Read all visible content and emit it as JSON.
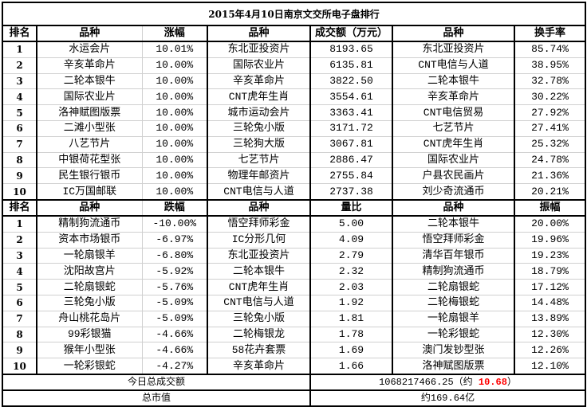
{
  "title": "2015年4月10日南京文交所电子盘排行",
  "top_section": {
    "headers": [
      "排名",
      "品种",
      "涨幅",
      "品种",
      "成交额（万元）",
      "品种",
      "换手率"
    ],
    "rows": [
      [
        "1",
        "水运会片",
        "10.01%",
        "东北亚投资片",
        "8193.65",
        "东北亚投资片",
        "85.74%"
      ],
      [
        "2",
        "辛亥革命片",
        "10.00%",
        "国际农业片",
        "6135.81",
        "CNT电信与人道",
        "38.95%"
      ],
      [
        "3",
        "二轮本银牛",
        "10.00%",
        "辛亥革命片",
        "3822.50",
        "二轮本银牛",
        "32.78%"
      ],
      [
        "4",
        "国际农业片",
        "10.00%",
        "CNT虎年生肖",
        "3554.61",
        "辛亥革命片",
        "30.22%"
      ],
      [
        "5",
        "洛神赋图版票",
        "10.00%",
        "城市运动会片",
        "3363.41",
        "CNT电信贸易",
        "27.92%"
      ],
      [
        "6",
        "二滩小型张",
        "10.00%",
        "三轮兔小版",
        "3171.72",
        "七艺节片",
        "27.41%"
      ],
      [
        "7",
        "八艺节片",
        "10.00%",
        "三轮狗大版",
        "3067.81",
        "CNT虎年生肖",
        "25.32%"
      ],
      [
        "8",
        "中银荷花型张",
        "10.00%",
        "七艺节片",
        "2886.47",
        "国际农业片",
        "24.78%"
      ],
      [
        "9",
        "民生银行银币",
        "10.00%",
        "物理年邮资片",
        "2755.84",
        "户县农民画片",
        "21.36%"
      ],
      [
        "10",
        "IC万国邮联",
        "10.00%",
        "CNT电信与人道",
        "2737.38",
        "刘少奇流通币",
        "20.21%"
      ]
    ]
  },
  "bottom_section": {
    "headers": [
      "排名",
      "品种",
      "跌幅",
      "品种",
      "量比",
      "品种",
      "振幅"
    ],
    "rows": [
      [
        "1",
        "精制狗流通币",
        "-10.00%",
        "悟空拜师彩金",
        "5.00",
        "二轮本银牛",
        "20.00%"
      ],
      [
        "2",
        "资本市场银币",
        "-6.97%",
        "IC分形几何",
        "4.09",
        "悟空拜师彩金",
        "19.96%"
      ],
      [
        "3",
        "一轮扇银羊",
        "-6.80%",
        "东北亚投资片",
        "2.79",
        "清华百年银币",
        "19.23%"
      ],
      [
        "4",
        "沈阳故宫片",
        "-5.92%",
        "二轮本银牛",
        "2.32",
        "精制狗流通币",
        "18.79%"
      ],
      [
        "5",
        "二轮扇银蛇",
        "-5.76%",
        "CNT虎年生肖",
        "2.03",
        "二轮扇银蛇",
        "17.12%"
      ],
      [
        "6",
        "三轮兔小版",
        "-5.09%",
        "CNT电信与人道",
        "1.92",
        "二轮梅银蛇",
        "14.48%"
      ],
      [
        "7",
        "舟山桃花岛片",
        "-5.09%",
        "三轮兔小版",
        "1.81",
        "一轮扇银羊",
        "13.89%"
      ],
      [
        "8",
        "99彩银猫",
        "-4.66%",
        "二轮梅银龙",
        "1.78",
        "一轮彩银蛇",
        "12.30%"
      ],
      [
        "9",
        "猴年小型张",
        "-4.66%",
        "58花卉套票",
        "1.69",
        "澳门发钞型张",
        "12.26%"
      ],
      [
        "10",
        "一轮彩银蛇",
        "-4.27%",
        "辛亥革命片",
        "1.66",
        "洛神赋图版票",
        "12.10%"
      ]
    ]
  },
  "summary": {
    "total_turnover_label": "今日总成交额",
    "total_turnover_value": "1068217466.25（约 ",
    "total_turnover_approx": "10.68",
    "total_turnover_suffix": "）",
    "market_cap_label": "总市值",
    "market_cap_value": "约169.64亿"
  },
  "colors": {
    "highlight": "#ff0000",
    "border": "#000000",
    "grid": "#d0d0d0"
  }
}
